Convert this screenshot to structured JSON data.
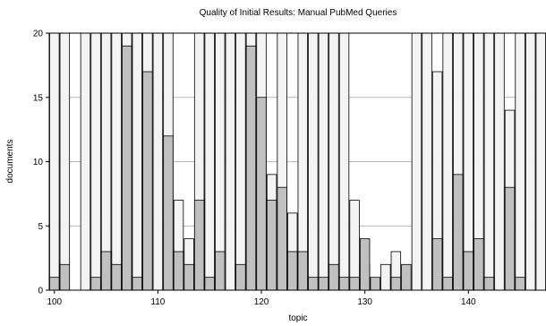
{
  "chart_data": {
    "type": "bar",
    "title": "Quality of Initial Results: Manual PubMed Queries",
    "xlabel": "topic",
    "ylabel": "documents",
    "x_start": 100,
    "x_ticks": [
      100,
      110,
      120,
      130,
      140
    ],
    "ylim": [
      0,
      20
    ],
    "y_ticks": [
      0,
      5,
      10,
      15,
      20
    ],
    "grid": true,
    "legend": "none",
    "colors": {
      "total": "#f3f3f3",
      "relevant": "#c0c0c0"
    },
    "series": [
      {
        "values": [
          20,
          20,
          0,
          20,
          20,
          20,
          20,
          20,
          20,
          20,
          20,
          20,
          7,
          4,
          20,
          20,
          20,
          20,
          20,
          20,
          20,
          9,
          20,
          6,
          20,
          20,
          20,
          20,
          20,
          7,
          2,
          0,
          2,
          3,
          0,
          20,
          20,
          17,
          20,
          20,
          20,
          20,
          20,
          20,
          14,
          20,
          20,
          20
        ]
      },
      {
        "values": [
          1,
          2,
          0,
          0,
          1,
          3,
          2,
          19,
          1,
          17,
          0,
          12,
          3,
          2,
          7,
          1,
          3,
          0,
          2,
          19,
          15,
          7,
          8,
          3,
          3,
          1,
          1,
          2,
          1,
          1,
          4,
          1,
          0,
          1,
          2,
          0,
          0,
          4,
          1,
          9,
          3,
          4,
          1,
          0,
          8,
          1,
          0,
          0
        ]
      }
    ]
  }
}
